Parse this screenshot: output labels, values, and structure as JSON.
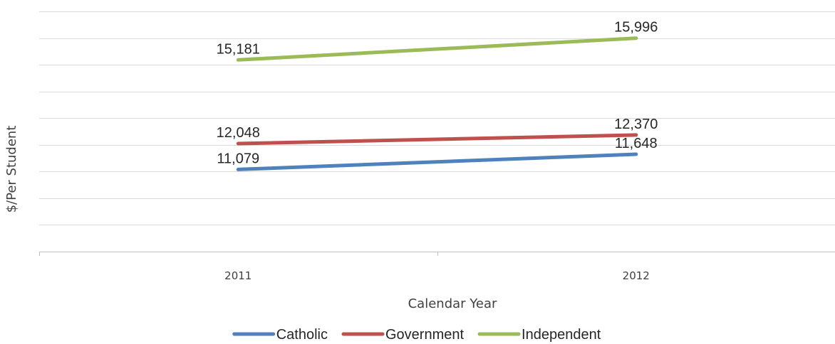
{
  "chart_data": {
    "type": "line",
    "title": "",
    "xlabel": "Calendar Year",
    "ylabel": "$/Per Student",
    "categories": [
      "2011",
      "2012"
    ],
    "ylim": [
      8000,
      17000
    ],
    "y_gridline_step": 1000,
    "y_tick_labels_shown": false,
    "grid": true,
    "legend_position": "bottom",
    "series": [
      {
        "name": "Catholic",
        "color": "#4f81bd",
        "values": [
          11079,
          11648
        ],
        "labels": [
          "11,079",
          "11,648"
        ]
      },
      {
        "name": "Government",
        "color": "#c0504d",
        "values": [
          12048,
          12370
        ],
        "labels": [
          "12,048",
          "12,370"
        ]
      },
      {
        "name": "Independent",
        "color": "#9bbb59",
        "values": [
          15181,
          15996
        ],
        "labels": [
          "15,181",
          "15,996"
        ]
      }
    ]
  }
}
